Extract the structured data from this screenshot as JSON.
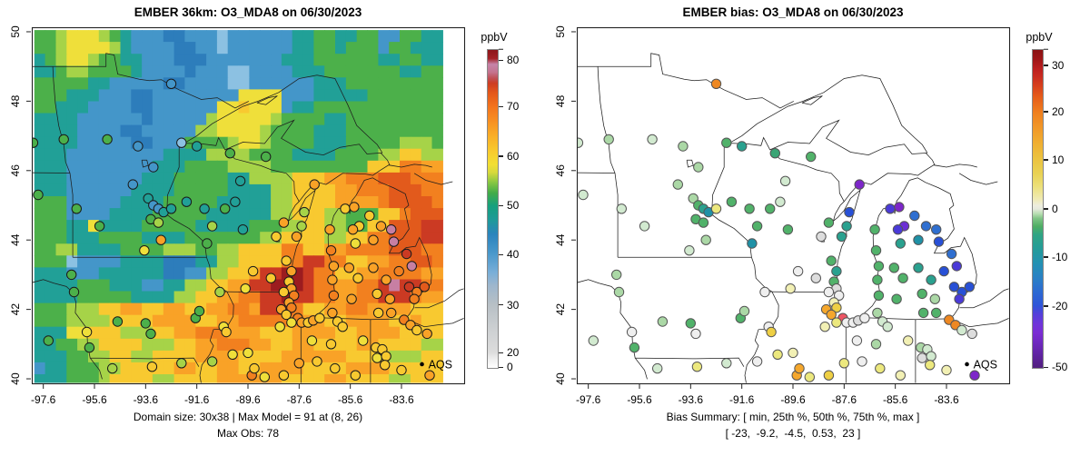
{
  "panels": [
    {
      "title": "EMBER 36km: O3_MDA8 on 06/30/2023",
      "captions": [
        "Domain size: 30x38 | Max Model = 91 at (8, 26)",
        "Max Obs: 78"
      ],
      "legend": "AQS",
      "colorbar": {
        "label": "ppbV",
        "ticks": [
          {
            "label": "",
            "pct": 100
          },
          {
            "label": "80",
            "pct": 96.5
          },
          {
            "label": "70",
            "pct": 82
          },
          {
            "label": "60",
            "pct": 66.5
          },
          {
            "label": "50",
            "pct": 51
          },
          {
            "label": "40",
            "pct": 35.7
          },
          {
            "label": "30",
            "pct": 20
          },
          {
            "label": "20",
            "pct": 5
          },
          {
            "label": "0",
            "pct": 0.5
          }
        ]
      }
    },
    {
      "title": "EMBER bias: O3_MDA8 on 06/30/2023",
      "captions": [
        "Bias Summary: [ min, 25th %, 50th %, 75th %, max ]",
        "[ -23,  -9.2,  -4.5,  0.53,  23 ]"
      ],
      "legend": "AQS",
      "colorbar": {
        "label": "ppbV",
        "ticks": [
          {
            "label": "",
            "pct": 100
          },
          {
            "label": "30",
            "pct": 94.9
          },
          {
            "label": "20",
            "pct": 80.4
          },
          {
            "label": "10",
            "pct": 65.4
          },
          {
            "label": "0",
            "pct": 50
          },
          {
            "label": "-10",
            "pct": 35
          },
          {
            "label": "-20",
            "pct": 19.6
          },
          {
            "label": "-50",
            "pct": 0.5
          }
        ]
      }
    }
  ],
  "axes": {
    "x_ticks": [
      "-97.6",
      "-95.6",
      "-93.6",
      "-91.6",
      "-89.6",
      "-87.6",
      "-85.6",
      "-83.6"
    ],
    "x_values": [
      -97.6,
      -95.6,
      -93.6,
      -91.6,
      -89.6,
      -87.6,
      -85.6,
      -83.6
    ],
    "y_ticks": [
      "40",
      "42",
      "44",
      "46",
      "48",
      "50"
    ],
    "y_values": [
      40,
      42,
      44,
      46,
      48,
      50
    ]
  },
  "chart_data": {
    "type": [
      "heatmap",
      "scatter"
    ],
    "title_left": "EMBER 36km: O3_MDA8 on 06/30/2023",
    "title_right": "EMBER bias: O3_MDA8 on 06/30/2023",
    "units": "ppbV",
    "extent": {
      "lon": [
        -98.05,
        -81.15
      ],
      "lat": [
        39.87,
        50.13
      ]
    },
    "model_max": 91,
    "model_max_at": "(8, 26)",
    "obs_max": 78,
    "bias_summary": {
      "min": -23,
      "p25": -9.2,
      "p50": -4.5,
      "p75": 0.53,
      "max": 23
    },
    "palette": {
      "w": "#fbfbfb",
      "g": "#d8d8d8",
      "l": "#8cc1e2",
      "b": "#4496c9",
      "B": "#2d7dbb",
      "t": "#21a097",
      "G": "#4cb04a",
      "y": "#a6d348",
      "Y": "#efdf3a",
      "d": "#f8c930",
      "o": "#f9a227",
      "O": "#f2801f",
      "r": "#e25a1c",
      "R": "#cb3a23",
      "D": "#9c1c1f",
      "m": "#c77fa3"
    },
    "bias_palette": {
      "R": "#c62b24",
      "O": "#ee8822",
      "o": "#f5a72c",
      "d": "#eecf44",
      "Y": "#ece87e",
      "y": "#f2f0b4",
      "W": "#efefef",
      "g": "#dddddd",
      "p": "#d2ead0",
      "q": "#abd8a6",
      "G": "#51b26a",
      "e": "#3aa575",
      "t": "#2aa18f",
      "T": "#1f91a6",
      "b": "#2f6fd0",
      "B": "#2850d6",
      "u": "#4a3ad8",
      "v": "#6c2fd4",
      "P": "#7d26c9",
      "k": "#ed5565"
    },
    "model_raster": {
      "ncols": 38,
      "nrows": 30,
      "lon0": -97.95,
      "lat0": 50.05,
      "dlon": 0.42,
      "dlat": 0.342,
      "rows": [
        "GGyYYYyGtbbbBBbbblbbbbbbttGGttGGbbGGtt",
        "GGyYYYYytbbbbBBbblbbbbbbttGGtGGGbGGttt",
        "tGyYYyGGttbbbBBBbbbbbbbtttGGGGGGttGGtt",
        "ttGyyGGGGtbbbbBbbbllbbbbtttGGGGGGGttGG",
        "GGGGGttbbbbbBBbbbbllbbbbbbtttGGGGGGGGG",
        "GGGtttbbbBBbbbbbbbbYYYYbbbtttttGGGGGGG",
        "GGtttbbbbBBbbbbbbYYdYYYbttGGGGGGGGGGGG",
        "ttttbbbbbbBbbbbbyYYYYYyGGGGttGGGGGGGGG",
        "ttttbbbbBBbbbbbyyYYYYyGGGGtttGGGGGGGGG",
        "ttttbbbbbBBbbbGGGGyYYyGGGGtttGGGGGyyyG",
        "tttbbbbbbbbbttttyyyyGGGGttttGGGGyyddyy",
        "tttbbbbbbbbtttGGGGyyyyGGGGGGGGGdddOOoo",
        "tttbbbbbbbtttGGGGGttyyyydddooOOOrrrOOO",
        "tttbbbbbbttttGGGGGttttyyddddooOOOrrrOO",
        "GGGbbbbbttttGGGGGtttttyyddddooooOrrrrO",
        "GGGbbbbttttGGGGGttttttyydddyyGGGddOrrr",
        "GGGttYttttGGGGGtttttGGGyyddyyGGddrrrRR",
        "GGGtttGGGGttttGGGGGGGyyddddyyddOOrrrRR",
        "GGyyttttGGGGyyyGGyyddddOOddooOOOOrrrOO",
        "GGGlbbbbttttBBBttyyddddOORROOddooOOrrO",
        "tttbbbttttttBBbbyyddoRRDDROOddooOOOOoo",
        "ttttGGGtttbbttyyddooRRDDDROOooOORmRROO",
        "ttttGGGGGttttyyddooOORRDRROOooOORRROoo",
        "GGGyyyddooddooddooOOoRRROddooOOooooddd",
        "GGGyyyyddddooooddooOOOOOOooddooooddodd",
        "tttYYdddyyyddooOOOooodddooooddoooodddd",
        "ttGGyyddddyyyddooOOOooddooddddooddddyy",
        "tttGGyyddyyddddooooddddooooooddddyyydd",
        "bttGGGyydddddooddooddooooddddooooddddd",
        "tttGGGyddddyyddddooooooddddooddddyyddd"
      ]
    },
    "stations": [
      [
        -92.6,
        48.5,
        "b",
        "O"
      ],
      [
        -98.0,
        46.8,
        "G",
        "p"
      ],
      [
        -96.8,
        46.9,
        "G",
        "q"
      ],
      [
        -95.1,
        46.9,
        "G",
        "p"
      ],
      [
        -93.9,
        46.7,
        "b",
        "q"
      ],
      [
        -93.3,
        46.1,
        "b",
        "q"
      ],
      [
        -92.2,
        46.8,
        "l",
        "G"
      ],
      [
        -91.6,
        46.7,
        "t",
        "t"
      ],
      [
        -90.3,
        46.5,
        "G",
        "e"
      ],
      [
        -88.9,
        46.4,
        "G",
        "G"
      ],
      [
        -89.9,
        45.7,
        "t",
        "p"
      ],
      [
        -90.1,
        45.1,
        "t",
        "p"
      ],
      [
        -97.8,
        45.3,
        "G",
        "p"
      ],
      [
        -96.3,
        44.9,
        "G",
        "p"
      ],
      [
        -95.4,
        44.4,
        "G",
        "p"
      ],
      [
        -94.1,
        45.6,
        "b",
        "q"
      ],
      [
        -93.5,
        45.2,
        "t",
        "q"
      ],
      [
        -93.3,
        45.0,
        "b",
        "G"
      ],
      [
        -93.1,
        44.9,
        "b",
        "t"
      ],
      [
        -92.9,
        44.8,
        "t",
        "T"
      ],
      [
        -93.4,
        44.6,
        "G",
        "G"
      ],
      [
        -93.1,
        44.5,
        "y",
        "G"
      ],
      [
        -92.6,
        44.9,
        "t",
        "Y"
      ],
      [
        -92.0,
        45.1,
        "t",
        "G"
      ],
      [
        -91.3,
        44.9,
        "t",
        "G"
      ],
      [
        -90.5,
        44.9,
        "G",
        "G"
      ],
      [
        -91.2,
        43.9,
        "G",
        "T"
      ],
      [
        -91.0,
        44.4,
        "y",
        "G"
      ],
      [
        -89.8,
        44.3,
        "t",
        "G"
      ],
      [
        -93.0,
        44.0,
        "o",
        "q"
      ],
      [
        -93.65,
        43.7,
        "Y",
        "p"
      ],
      [
        -88.2,
        44.5,
        "o",
        "G"
      ],
      [
        -87.4,
        44.8,
        "y",
        "B"
      ],
      [
        -87.0,
        45.6,
        "o",
        "P"
      ],
      [
        -87.5,
        44.4,
        "y",
        "t"
      ],
      [
        -87.7,
        44.1,
        "o",
        "t"
      ],
      [
        -88.5,
        44.1,
        "d",
        "g"
      ],
      [
        -89.4,
        43.1,
        "d",
        "W"
      ],
      [
        -89.7,
        42.6,
        "Y",
        "y"
      ],
      [
        -90.7,
        42.5,
        "y",
        "W"
      ],
      [
        -88.7,
        42.9,
        "d",
        "g"
      ],
      [
        -88.1,
        43.4,
        "d",
        "G"
      ],
      [
        -87.9,
        43.1,
        "o",
        "t"
      ],
      [
        -88.0,
        42.8,
        "d",
        "G"
      ],
      [
        -87.9,
        42.6,
        "o",
        "g"
      ],
      [
        -88.2,
        42.5,
        "d",
        "W"
      ],
      [
        -87.8,
        42.4,
        "O",
        "W"
      ],
      [
        -88.0,
        42.2,
        "o",
        "y"
      ],
      [
        -87.9,
        42.05,
        "O",
        "d"
      ],
      [
        -88.3,
        42.0,
        "o",
        "o"
      ],
      [
        -88.1,
        41.85,
        "d",
        "o"
      ],
      [
        -87.65,
        41.75,
        "O",
        "k"
      ],
      [
        -87.5,
        41.62,
        "o",
        "W"
      ],
      [
        -87.25,
        41.62,
        "d",
        "W"
      ],
      [
        -87.9,
        41.62,
        "Y",
        "Y"
      ],
      [
        -88.35,
        41.5,
        "Y",
        "y"
      ],
      [
        -87.05,
        41.68,
        "o",
        "g"
      ],
      [
        -86.8,
        41.75,
        "d",
        "W"
      ],
      [
        -86.3,
        41.9,
        "o",
        "q"
      ],
      [
        -86.25,
        42.4,
        "O",
        "G"
      ],
      [
        -86.3,
        42.85,
        "o",
        "G"
      ],
      [
        -86.25,
        43.25,
        "o",
        "G"
      ],
      [
        -86.35,
        43.7,
        "O",
        "G"
      ],
      [
        -86.4,
        44.3,
        "o",
        "G"
      ],
      [
        -85.8,
        44.9,
        "d",
        "u"
      ],
      [
        -85.45,
        44.95,
        "o",
        "P"
      ],
      [
        -85.25,
        44.4,
        "d",
        "v"
      ],
      [
        -85.5,
        44.3,
        "o",
        "u"
      ],
      [
        -84.85,
        44.7,
        "d",
        "b"
      ],
      [
        -84.4,
        44.4,
        "o",
        "b"
      ],
      [
        -84.7,
        44.0,
        "o",
        "T"
      ],
      [
        -85.4,
        43.9,
        "Y",
        "t"
      ],
      [
        -84.0,
        44.3,
        "m",
        "b"
      ],
      [
        -83.9,
        43.95,
        "m",
        "B"
      ],
      [
        -83.4,
        43.6,
        "R",
        "b"
      ],
      [
        -83.2,
        43.25,
        "m",
        "u"
      ],
      [
        -83.7,
        43.1,
        "O",
        "B"
      ],
      [
        -83.3,
        42.65,
        "R",
        "B"
      ],
      [
        -83.0,
        42.5,
        "O",
        "B"
      ],
      [
        -83.1,
        42.3,
        "O",
        "u"
      ],
      [
        -82.7,
        42.65,
        "r",
        "B"
      ],
      [
        -84.7,
        43.2,
        "o",
        "t"
      ],
      [
        -84.2,
        42.85,
        "o",
        "t"
      ],
      [
        -84.55,
        42.45,
        "d",
        "G"
      ],
      [
        -84.05,
        42.3,
        "o",
        "q"
      ],
      [
        -85.55,
        42.3,
        "o",
        "G"
      ],
      [
        -85.3,
        42.9,
        "d",
        "G"
      ],
      [
        -85.65,
        43.2,
        "o",
        "G"
      ],
      [
        -86.1,
        41.65,
        "d",
        "p"
      ],
      [
        -85.9,
        41.5,
        "d",
        "p"
      ],
      [
        -85.1,
        41.1,
        "Y",
        "y"
      ],
      [
        -86.35,
        41.0,
        "d",
        "q"
      ],
      [
        -87.1,
        41.1,
        "Y",
        "W"
      ],
      [
        -84.5,
        41.9,
        "d",
        "G"
      ],
      [
        -84.0,
        41.9,
        "o",
        "G"
      ],
      [
        -83.5,
        41.7,
        "O",
        "O"
      ],
      [
        -83.25,
        41.55,
        "o",
        "O"
      ],
      [
        -83.0,
        41.4,
        "d",
        "p"
      ],
      [
        -82.6,
        41.3,
        "o",
        "g"
      ],
      [
        -82.5,
        40.1,
        "o",
        "P"
      ],
      [
        -84.6,
        40.9,
        "d",
        "q"
      ],
      [
        -84.35,
        40.85,
        "d",
        "p"
      ],
      [
        -84.55,
        40.6,
        "Y",
        "g"
      ],
      [
        -84.2,
        40.65,
        "d",
        "p"
      ],
      [
        -84.25,
        40.4,
        "d",
        "Y"
      ],
      [
        -83.6,
        40.25,
        "d",
        "y"
      ],
      [
        -85.4,
        40.1,
        "d",
        "y"
      ],
      [
        -86.2,
        40.3,
        "d",
        "Y"
      ],
      [
        -86.9,
        40.5,
        "d",
        "W"
      ],
      [
        -87.6,
        40.45,
        "o",
        "Y"
      ],
      [
        -88.2,
        40.1,
        "d",
        "d"
      ],
      [
        -88.95,
        40.05,
        "Y",
        "Y"
      ],
      [
        -89.45,
        40.1,
        "O",
        "o"
      ],
      [
        -89.35,
        40.3,
        "d",
        "o"
      ],
      [
        -90.2,
        40.7,
        "Y",
        "Y"
      ],
      [
        -89.6,
        40.75,
        "Y",
        "y"
      ],
      [
        -91.0,
        40.5,
        "y",
        "W"
      ],
      [
        -92.2,
        40.45,
        "y",
        "p"
      ],
      [
        -93.35,
        40.35,
        "d",
        "Y"
      ],
      [
        -94.9,
        40.3,
        "y",
        "p"
      ],
      [
        -95.8,
        40.9,
        "G",
        "G"
      ],
      [
        -95.9,
        41.35,
        "Y",
        "W"
      ],
      [
        -96.4,
        42.5,
        "G",
        "q"
      ],
      [
        -94.7,
        41.65,
        "G",
        "q"
      ],
      [
        -93.6,
        41.6,
        "G",
        "G"
      ],
      [
        -93.4,
        41.3,
        "G",
        "W"
      ],
      [
        -91.65,
        41.75,
        "G",
        "G"
      ],
      [
        -91.5,
        41.95,
        "G",
        "q"
      ],
      [
        -90.55,
        41.5,
        "Y",
        "W"
      ],
      [
        -90.45,
        41.35,
        "d",
        "d"
      ],
      [
        -96.5,
        43.0,
        "G",
        "q"
      ],
      [
        -97.4,
        41.1,
        "G",
        "p"
      ]
    ]
  }
}
